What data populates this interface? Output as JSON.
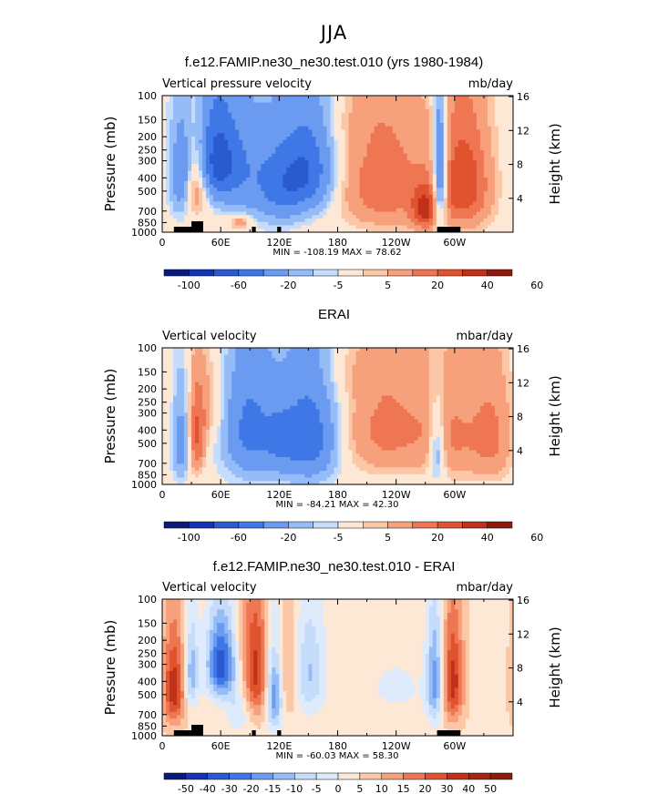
{
  "main_title": "JJA",
  "chart_data": [
    {
      "type": "heatmap",
      "title": "f.e12.FAMIP.ne30_ne30.test.010 (yrs 1980-1984)",
      "left_label": "Vertical pressure velocity",
      "units": "mb/day",
      "ylabel": "Pressure (mb)",
      "ylabel_right": "Height (km)",
      "x_ticks": [
        "0",
        "60E",
        "120E",
        "180",
        "120W",
        "60W"
      ],
      "y_ticks": [
        "100",
        "150",
        "200",
        "250",
        "300",
        "400",
        "500",
        "700",
        "850",
        "1000"
      ],
      "height_ticks": [
        "16",
        "12",
        "8",
        "4"
      ],
      "stats": "MIN = -108.19   MAX =  78.62",
      "colorbar": {
        "colors": [
          "#0a1a7a",
          "#1434b4",
          "#2a5ad0",
          "#3f78e6",
          "#6a9bf0",
          "#96bcf8",
          "#c5dcfb",
          "#fde8d6",
          "#fbc7a6",
          "#f7a07c",
          "#ef7652",
          "#e0532f",
          "#c0311a",
          "#8f1b0d"
        ],
        "labels": [
          "-100",
          "-60",
          "-20",
          "-5",
          "5",
          "20",
          "40",
          "60"
        ]
      },
      "features": [
        {
          "lon": 55,
          "p": 300,
          "v": -70,
          "w": 18,
          "h": 250
        },
        {
          "lon": 35,
          "p": 400,
          "v": 45,
          "w": 10,
          "h": 280
        },
        {
          "lon": 20,
          "p": 400,
          "v": -35,
          "w": 8,
          "h": 300
        },
        {
          "lon": 100,
          "p": 400,
          "v": -30,
          "w": 22,
          "h": 350
        },
        {
          "lon": 150,
          "p": 350,
          "v": -55,
          "w": 18,
          "h": 300
        },
        {
          "lon": 125,
          "p": 500,
          "v": -25,
          "w": 15,
          "h": 300
        },
        {
          "lon": 228,
          "p": 450,
          "v": 30,
          "w": 35,
          "h": 450
        },
        {
          "lon": 310,
          "p": 450,
          "v": 40,
          "w": 20,
          "h": 450
        },
        {
          "lon": 285,
          "p": 400,
          "v": -55,
          "w": 5,
          "h": 420
        },
        {
          "lon": 270,
          "p": 700,
          "v": 35,
          "w": 10,
          "h": 250
        },
        {
          "lon": 80,
          "p": 850,
          "v": 20,
          "w": 8,
          "h": 100
        },
        {
          "lon": 180,
          "p": 150,
          "v": 3,
          "w": 60,
          "h": 80
        }
      ]
    },
    {
      "type": "heatmap",
      "title": "ERAI",
      "left_label": "Vertical velocity",
      "units": "mbar/day",
      "ylabel": "Pressure (mb)",
      "ylabel_right": "Height (km)",
      "x_ticks": [
        "0",
        "60E",
        "120E",
        "180",
        "120W",
        "60W"
      ],
      "y_ticks": [
        "100",
        "150",
        "200",
        "250",
        "300",
        "400",
        "500",
        "700",
        "850",
        "1000"
      ],
      "height_ticks": [
        "16",
        "12",
        "8",
        "4"
      ],
      "stats": "MIN = -84.21   MAX =  42.30",
      "colorbar": {
        "colors": [
          "#0a1a7a",
          "#1434b4",
          "#2a5ad0",
          "#3f78e6",
          "#6a9bf0",
          "#96bcf8",
          "#c5dcfb",
          "#fde8d6",
          "#fbc7a6",
          "#f7a07c",
          "#ef7652",
          "#e0532f",
          "#c0311a",
          "#8f1b0d"
        ],
        "labels": [
          "-100",
          "-60",
          "-20",
          "-5",
          "5",
          "20",
          "40",
          "60"
        ]
      },
      "features": [
        {
          "lon": 35,
          "p": 450,
          "v": 35,
          "w": 7,
          "h": 350
        },
        {
          "lon": 20,
          "p": 500,
          "v": -30,
          "w": 7,
          "h": 350
        },
        {
          "lon": 90,
          "p": 400,
          "v": -45,
          "w": 18,
          "h": 400
        },
        {
          "lon": 150,
          "p": 450,
          "v": -55,
          "w": 20,
          "h": 400
        },
        {
          "lon": 120,
          "p": 500,
          "v": -20,
          "w": 10,
          "h": 300
        },
        {
          "lon": 230,
          "p": 400,
          "v": 25,
          "w": 35,
          "h": 400
        },
        {
          "lon": 300,
          "p": 450,
          "v": 20,
          "w": 25,
          "h": 450
        },
        {
          "lon": 282,
          "p": 550,
          "v": -30,
          "w": 6,
          "h": 350
        },
        {
          "lon": 340,
          "p": 450,
          "v": 20,
          "w": 15,
          "h": 450
        },
        {
          "lon": 50,
          "p": 250,
          "v": 12,
          "w": 10,
          "h": 200
        },
        {
          "lon": 180,
          "p": 150,
          "v": 4,
          "w": 60,
          "h": 80
        }
      ]
    },
    {
      "type": "heatmap",
      "title": "f.e12.FAMIP.ne30_ne30.test.010 - ERAI",
      "left_label": "Vertical velocity",
      "units": "mbar/day",
      "ylabel": "Pressure (mb)",
      "ylabel_right": "Height (km)",
      "x_ticks": [
        "0",
        "60E",
        "120E",
        "180",
        "120W",
        "60W"
      ],
      "y_ticks": [
        "100",
        "150",
        "200",
        "250",
        "300",
        "400",
        "500",
        "700",
        "850",
        "1000"
      ],
      "height_ticks": [
        "16",
        "12",
        "8",
        "4"
      ],
      "stats": "MIN = -60.03   MAX =  58.30",
      "colorbar": {
        "colors": [
          "#0a1a7a",
          "#1434b4",
          "#2a5ad0",
          "#3f78e6",
          "#6a9bf0",
          "#96bcf8",
          "#c5dcfb",
          "#deebfd",
          "#fde8d6",
          "#fbc7a6",
          "#f7a07c",
          "#ef7652",
          "#e0532f",
          "#c0311a",
          "#a82412",
          "#8f1b0d"
        ],
        "labels": [
          "-50",
          "-40",
          "-30",
          "-20",
          "-15",
          "-10",
          "-5",
          "0",
          "5",
          "10",
          "15",
          "20",
          "30",
          "40",
          "50"
        ]
      },
      "features": [
        {
          "lon": 60,
          "p": 300,
          "v": -45,
          "w": 10,
          "h": 200
        },
        {
          "lon": 12,
          "p": 450,
          "v": 35,
          "w": 8,
          "h": 350
        },
        {
          "lon": 30,
          "p": 350,
          "v": -25,
          "w": 5,
          "h": 250
        },
        {
          "lon": 95,
          "p": 350,
          "v": 35,
          "w": 10,
          "h": 350
        },
        {
          "lon": 115,
          "p": 500,
          "v": -35,
          "w": 6,
          "h": 350
        },
        {
          "lon": 150,
          "p": 350,
          "v": -20,
          "w": 12,
          "h": 300
        },
        {
          "lon": 80,
          "p": 600,
          "v": -15,
          "w": 10,
          "h": 300
        },
        {
          "lon": 280,
          "p": 400,
          "v": -30,
          "w": 6,
          "h": 350
        },
        {
          "lon": 298,
          "p": 400,
          "v": 35,
          "w": 8,
          "h": 350
        },
        {
          "lon": 130,
          "p": 350,
          "v": 15,
          "w": 8,
          "h": 300
        },
        {
          "lon": 240,
          "p": 450,
          "v": -6,
          "w": 30,
          "h": 300
        }
      ]
    }
  ]
}
